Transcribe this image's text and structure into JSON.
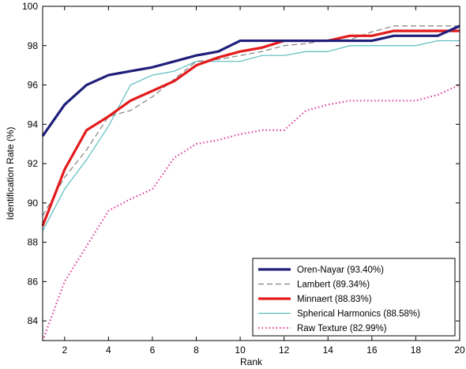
{
  "chart_data": {
    "type": "line",
    "title": "",
    "xlabel": "Rank",
    "ylabel": "Identification Rate (%)",
    "xlim": [
      1,
      20
    ],
    "ylim": [
      83,
      100
    ],
    "xticks": [
      2,
      4,
      6,
      8,
      10,
      12,
      14,
      16,
      18,
      20
    ],
    "yticks": [
      84,
      86,
      88,
      90,
      92,
      94,
      96,
      98,
      100
    ],
    "grid": false,
    "legend_position": "bottom-right",
    "x": [
      1,
      2,
      3,
      4,
      5,
      6,
      7,
      8,
      9,
      10,
      11,
      12,
      13,
      14,
      15,
      16,
      17,
      18,
      19,
      20
    ],
    "series": [
      {
        "name": "Oren-Nayar (93.40%)",
        "color": "#1f1f7a",
        "style": "solid-thick",
        "values": [
          93.4,
          95.0,
          96.0,
          96.5,
          96.7,
          96.9,
          97.2,
          97.5,
          97.7,
          98.25,
          98.25,
          98.25,
          98.25,
          98.25,
          98.25,
          98.25,
          98.5,
          98.5,
          98.5,
          99.0
        ]
      },
      {
        "name": "Lambert (89.34%)",
        "color": "#808080",
        "style": "dashed",
        "values": [
          89.34,
          91.3,
          92.7,
          94.4,
          94.7,
          95.4,
          96.3,
          97.2,
          97.3,
          97.5,
          97.7,
          98.0,
          98.1,
          98.3,
          98.3,
          98.7,
          99.0,
          99.0,
          99.0,
          99.0
        ]
      },
      {
        "name": "Minnaert (88.83%)",
        "color": "#e31a1c",
        "style": "solid-thick",
        "values": [
          88.83,
          91.7,
          93.7,
          94.4,
          95.2,
          95.7,
          96.2,
          97.0,
          97.4,
          97.7,
          97.9,
          98.25,
          98.25,
          98.25,
          98.5,
          98.5,
          98.75,
          98.75,
          98.75,
          98.75
        ]
      },
      {
        "name": "Spherical Harmonics (88.58%)",
        "color": "#5bbcbf",
        "style": "solid-thin",
        "values": [
          88.58,
          90.7,
          92.2,
          93.9,
          96.0,
          96.5,
          96.7,
          97.2,
          97.2,
          97.2,
          97.5,
          97.5,
          97.7,
          97.7,
          98.0,
          98.0,
          98.0,
          98.0,
          98.25,
          98.25
        ]
      },
      {
        "name": "Raw Texture (82.99%)",
        "color": "#e0409a",
        "style": "dotted",
        "values": [
          82.99,
          86.0,
          87.8,
          89.6,
          90.2,
          90.7,
          92.3,
          93.0,
          93.2,
          93.5,
          93.7,
          93.7,
          94.7,
          95.0,
          95.2,
          95.2,
          95.2,
          95.2,
          95.5,
          96.0
        ]
      }
    ]
  }
}
